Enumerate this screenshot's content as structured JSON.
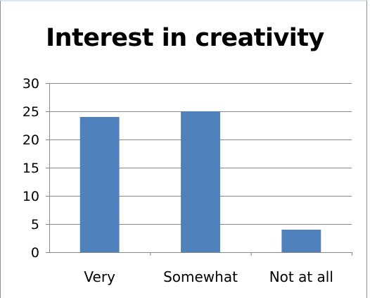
{
  "chart_data": {
    "type": "bar",
    "title": "Interest in creativity",
    "categories": [
      "Very",
      "Somewhat",
      "Not at all"
    ],
    "values": [
      24,
      25,
      4
    ],
    "yticks": [
      0,
      5,
      10,
      15,
      20,
      25,
      30
    ],
    "ylim": [
      0,
      30
    ],
    "xlabel": "",
    "ylabel": "",
    "grid": true,
    "legend": "none",
    "bar_color": "#4f81bd",
    "grid_color": "#878787"
  }
}
